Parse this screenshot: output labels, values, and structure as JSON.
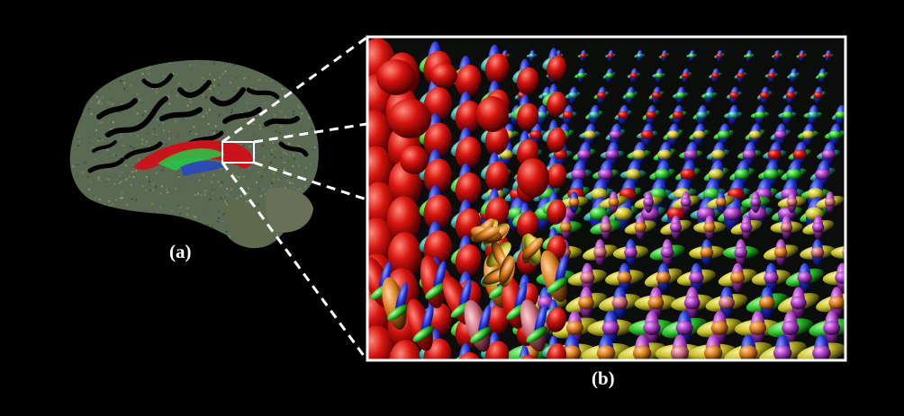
{
  "figure": {
    "panel_a": {
      "caption": "(a)"
    },
    "panel_b": {
      "caption": "(b)"
    }
  },
  "colors": {
    "background": "#000000",
    "frame": "#ffffff",
    "connector": "#ffffff",
    "tensor_red": "#e01414",
    "tensor_green": "#2ec82e",
    "tensor_blue": "#2233dd",
    "tensor_yellow": "#d8d23a",
    "tensor_magenta": "#b040c8",
    "tensor_cyan": "#32a8a0"
  }
}
